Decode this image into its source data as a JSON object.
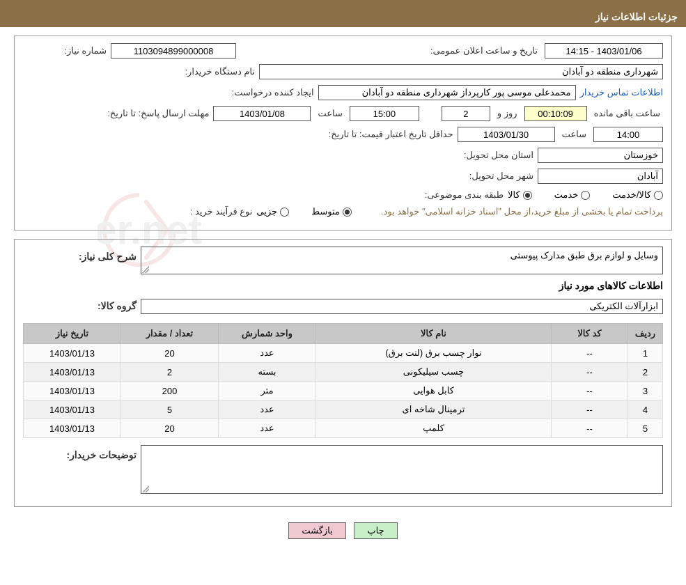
{
  "header": {
    "title": "جزئیات اطلاعات نیاز"
  },
  "fields": {
    "need_no_label": "شماره نیاز:",
    "need_no": "1103094899000008",
    "announce_label": "تاریخ و ساعت اعلان عمومی:",
    "announce_value": "1403/01/06 - 14:15",
    "buyer_org_label": "نام دستگاه خریدار:",
    "buyer_org": "شهرداری منطقه دو آبادان",
    "requester_label": "ایجاد کننده درخواست:",
    "requester": "محمدعلی موسی پور کارپرداز شهرداری منطقه دو آبادان",
    "contact_link": "اطلاعات تماس خریدار",
    "reply_deadline_label": "مهلت ارسال پاسخ: تا تاریخ:",
    "reply_date": "1403/01/08",
    "time_label": "ساعت",
    "reply_time": "15:00",
    "days_left": "2",
    "days_and_label": "روز و",
    "countdown": "00:10:09",
    "remaining_label": "ساعت باقی مانده",
    "price_validity_label": "حداقل تاریخ اعتبار قیمت: تا تاریخ:",
    "price_date": "1403/01/30",
    "price_time": "14:00",
    "deliv_province_label": "استان محل تحویل:",
    "deliv_province": "خوزستان",
    "deliv_city_label": "شهر محل تحویل:",
    "deliv_city": "آبادان",
    "category_label": "طبقه بندی موضوعی:",
    "cat_goods": "کالا",
    "cat_service": "خدمت",
    "cat_goods_service": "کالا/خدمت",
    "purchase_type_label": "نوع فرآیند خرید :",
    "pt_minor": "جزیی",
    "pt_medium": "متوسط",
    "payment_note": "پرداخت تمام یا بخشی از مبلغ خرید،از محل \"اسناد خزانه اسلامی\" خواهد بود."
  },
  "desc": {
    "title_label": "شرح کلی نیاز:",
    "title_text": "وسایل و لوازم برق طبق مدارک پیوستی",
    "items_heading": "اطلاعات کالاهای مورد نیاز",
    "group_label": "گروه کالا:",
    "group_value": "ابزارآلات الکتریکی",
    "buyer_notes_label": "توضیحات خریدار:",
    "buyer_notes": ""
  },
  "table": {
    "headers": {
      "idx": "ردیف",
      "code": "کد کالا",
      "name": "نام کالا",
      "unit": "واحد شمارش",
      "qty": "تعداد / مقدار",
      "date": "تاریخ نیاز"
    },
    "rows": [
      {
        "idx": "1",
        "code": "--",
        "name": "نوار چسب برق (لنت برق)",
        "unit": "عدد",
        "qty": "20",
        "date": "1403/01/13"
      },
      {
        "idx": "2",
        "code": "--",
        "name": "چسب سیلیکونی",
        "unit": "بسته",
        "qty": "2",
        "date": "1403/01/13"
      },
      {
        "idx": "3",
        "code": "--",
        "name": "کابل هوایی",
        "unit": "متر",
        "qty": "200",
        "date": "1403/01/13"
      },
      {
        "idx": "4",
        "code": "--",
        "name": "ترمینال شاخه ای",
        "unit": "عدد",
        "qty": "5",
        "date": "1403/01/13"
      },
      {
        "idx": "5",
        "code": "--",
        "name": "کلمپ",
        "unit": "عدد",
        "qty": "20",
        "date": "1403/01/13"
      }
    ]
  },
  "buttons": {
    "print": "چاپ",
    "back": "بازگشت"
  },
  "colors": {
    "header_bg": "#8b6f47",
    "header_fg": "#ffffff",
    "th_bg": "#c8c8c8",
    "link": "#1a5fb4",
    "note": "#8b6f47",
    "btn_print_bg": "#c8f0c8",
    "btn_back_bg": "#f0c8d0"
  }
}
